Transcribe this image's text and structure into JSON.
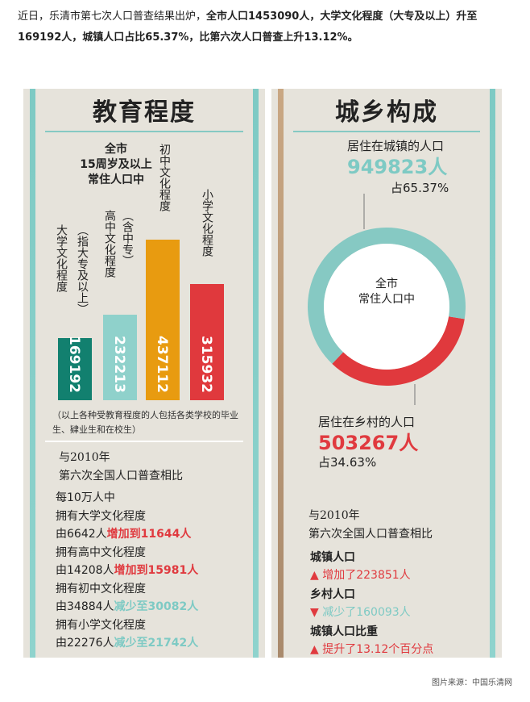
{
  "intro": {
    "p1": "近日，乐清市第七次人口普查结果出炉，",
    "b1": "全市人口1453090人，大学文化程度（大专及以上）升至169192人，城镇人口占比65.37%，比第六次人口普查上升13.12%。"
  },
  "chart_data": [
    {
      "type": "bar",
      "title": "教育程度",
      "subtitle": [
        "全市",
        "15周岁及以上",
        "常住人口中"
      ],
      "categories": [
        "大学文化程度（指大专及以上）",
        "高中文化程度（含中专）",
        "初中文化程度",
        "小学文化程度"
      ],
      "category_labels": [
        [
          "大学",
          "文化",
          "程度"
        ],
        [
          "高中文化程度",
          "（含中专）"
        ],
        [
          "初中文化程度"
        ],
        [
          "小学文化程度"
        ]
      ],
      "sub_labels": [
        "（指大专及以上）",
        "",
        "",
        ""
      ],
      "values": [
        169192,
        232213,
        437112,
        315932
      ],
      "value_labels": [
        "169192",
        "232213",
        "437112",
        "315932"
      ],
      "colors": [
        "#12806f",
        "#8fd1cb",
        "#e89b10",
        "#e0393d"
      ],
      "note": "（以上各种受教育程度的人包括各类学校的毕业生、肄业生和在校生）",
      "compare": {
        "heading1": "与2010年",
        "heading2": "第六次全国人口普查相比",
        "lines": [
          {
            "text": "每10万人中"
          },
          {
            "text": "拥有大学文化程度"
          },
          {
            "pre": "由6642人",
            "change": "增加到11644人",
            "dir": "up"
          },
          {
            "text": "拥有高中文化程度"
          },
          {
            "pre": "由14208人",
            "change": "增加到15981人",
            "dir": "up"
          },
          {
            "text": "拥有初中文化程度"
          },
          {
            "pre": "由34884人",
            "change": "减少至30082人",
            "dir": "down"
          },
          {
            "text": "拥有小学文化程度"
          },
          {
            "pre": "由22276人",
            "change": "减少至21742人",
            "dir": "down"
          }
        ]
      }
    },
    {
      "type": "pie",
      "title": "城乡构成",
      "center_label": [
        "全市",
        "常住人口中"
      ],
      "slices": [
        {
          "name": "居住在城镇的人口",
          "value": 949823,
          "value_label": "949823人",
          "percent_label": "占65.37%",
          "color": "#86c9c3"
        },
        {
          "name": "居住在乡村的人口",
          "value": 503267,
          "value_label": "503267人",
          "percent_label": "占34.63%",
          "color": "#e0393d"
        }
      ],
      "compare": {
        "heading1": "与2010年",
        "heading2": "第六次全国人口普查相比",
        "items": [
          {
            "label": "城镇人口",
            "arrow": "▲",
            "change": "增加了223851人",
            "dir": "up"
          },
          {
            "label": "乡村人口",
            "arrow": "▼",
            "change": "减少了160093人",
            "dir": "down"
          },
          {
            "label": "城镇人口比重",
            "arrow": "▲",
            "change": "提升了13.12个百分点",
            "dir": "up"
          }
        ]
      }
    }
  ],
  "source": "图片来源：中国乐清网"
}
